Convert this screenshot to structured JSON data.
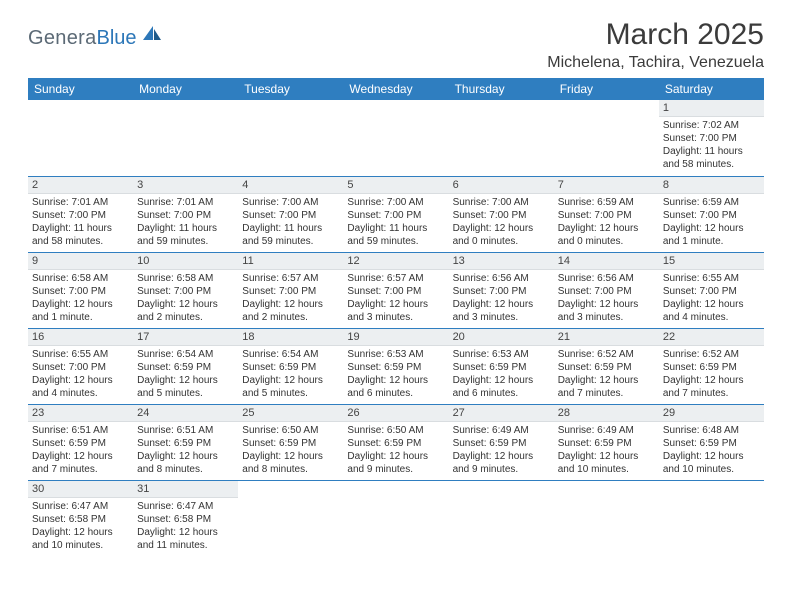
{
  "brand": {
    "main": "Genera",
    "sub": "Blue"
  },
  "title": "March 2025",
  "location": "Michelena, Tachira, Venezuela",
  "colors": {
    "header_bg": "#2f7ec0",
    "header_text": "#ffffff",
    "daynum_bg": "#eceff1",
    "rule": "#2f7ec0",
    "logo_main": "#5c6a76",
    "logo_sub": "#2c77b8"
  },
  "day_headers": [
    "Sunday",
    "Monday",
    "Tuesday",
    "Wednesday",
    "Thursday",
    "Friday",
    "Saturday"
  ],
  "leading_blanks": 6,
  "days": [
    {
      "n": 1,
      "sunrise": "7:02 AM",
      "sunset": "7:00 PM",
      "daylight": "11 hours and 58 minutes."
    },
    {
      "n": 2,
      "sunrise": "7:01 AM",
      "sunset": "7:00 PM",
      "daylight": "11 hours and 58 minutes."
    },
    {
      "n": 3,
      "sunrise": "7:01 AM",
      "sunset": "7:00 PM",
      "daylight": "11 hours and 59 minutes."
    },
    {
      "n": 4,
      "sunrise": "7:00 AM",
      "sunset": "7:00 PM",
      "daylight": "11 hours and 59 minutes."
    },
    {
      "n": 5,
      "sunrise": "7:00 AM",
      "sunset": "7:00 PM",
      "daylight": "11 hours and 59 minutes."
    },
    {
      "n": 6,
      "sunrise": "7:00 AM",
      "sunset": "7:00 PM",
      "daylight": "12 hours and 0 minutes."
    },
    {
      "n": 7,
      "sunrise": "6:59 AM",
      "sunset": "7:00 PM",
      "daylight": "12 hours and 0 minutes."
    },
    {
      "n": 8,
      "sunrise": "6:59 AM",
      "sunset": "7:00 PM",
      "daylight": "12 hours and 1 minute."
    },
    {
      "n": 9,
      "sunrise": "6:58 AM",
      "sunset": "7:00 PM",
      "daylight": "12 hours and 1 minute."
    },
    {
      "n": 10,
      "sunrise": "6:58 AM",
      "sunset": "7:00 PM",
      "daylight": "12 hours and 2 minutes."
    },
    {
      "n": 11,
      "sunrise": "6:57 AM",
      "sunset": "7:00 PM",
      "daylight": "12 hours and 2 minutes."
    },
    {
      "n": 12,
      "sunrise": "6:57 AM",
      "sunset": "7:00 PM",
      "daylight": "12 hours and 3 minutes."
    },
    {
      "n": 13,
      "sunrise": "6:56 AM",
      "sunset": "7:00 PM",
      "daylight": "12 hours and 3 minutes."
    },
    {
      "n": 14,
      "sunrise": "6:56 AM",
      "sunset": "7:00 PM",
      "daylight": "12 hours and 3 minutes."
    },
    {
      "n": 15,
      "sunrise": "6:55 AM",
      "sunset": "7:00 PM",
      "daylight": "12 hours and 4 minutes."
    },
    {
      "n": 16,
      "sunrise": "6:55 AM",
      "sunset": "7:00 PM",
      "daylight": "12 hours and 4 minutes."
    },
    {
      "n": 17,
      "sunrise": "6:54 AM",
      "sunset": "6:59 PM",
      "daylight": "12 hours and 5 minutes."
    },
    {
      "n": 18,
      "sunrise": "6:54 AM",
      "sunset": "6:59 PM",
      "daylight": "12 hours and 5 minutes."
    },
    {
      "n": 19,
      "sunrise": "6:53 AM",
      "sunset": "6:59 PM",
      "daylight": "12 hours and 6 minutes."
    },
    {
      "n": 20,
      "sunrise": "6:53 AM",
      "sunset": "6:59 PM",
      "daylight": "12 hours and 6 minutes."
    },
    {
      "n": 21,
      "sunrise": "6:52 AM",
      "sunset": "6:59 PM",
      "daylight": "12 hours and 7 minutes."
    },
    {
      "n": 22,
      "sunrise": "6:52 AM",
      "sunset": "6:59 PM",
      "daylight": "12 hours and 7 minutes."
    },
    {
      "n": 23,
      "sunrise": "6:51 AM",
      "sunset": "6:59 PM",
      "daylight": "12 hours and 7 minutes."
    },
    {
      "n": 24,
      "sunrise": "6:51 AM",
      "sunset": "6:59 PM",
      "daylight": "12 hours and 8 minutes."
    },
    {
      "n": 25,
      "sunrise": "6:50 AM",
      "sunset": "6:59 PM",
      "daylight": "12 hours and 8 minutes."
    },
    {
      "n": 26,
      "sunrise": "6:50 AM",
      "sunset": "6:59 PM",
      "daylight": "12 hours and 9 minutes."
    },
    {
      "n": 27,
      "sunrise": "6:49 AM",
      "sunset": "6:59 PM",
      "daylight": "12 hours and 9 minutes."
    },
    {
      "n": 28,
      "sunrise": "6:49 AM",
      "sunset": "6:59 PM",
      "daylight": "12 hours and 10 minutes."
    },
    {
      "n": 29,
      "sunrise": "6:48 AM",
      "sunset": "6:59 PM",
      "daylight": "12 hours and 10 minutes."
    },
    {
      "n": 30,
      "sunrise": "6:47 AM",
      "sunset": "6:58 PM",
      "daylight": "12 hours and 10 minutes."
    },
    {
      "n": 31,
      "sunrise": "6:47 AM",
      "sunset": "6:58 PM",
      "daylight": "12 hours and 11 minutes."
    }
  ],
  "labels": {
    "sunrise": "Sunrise: ",
    "sunset": "Sunset: ",
    "daylight": "Daylight: "
  }
}
